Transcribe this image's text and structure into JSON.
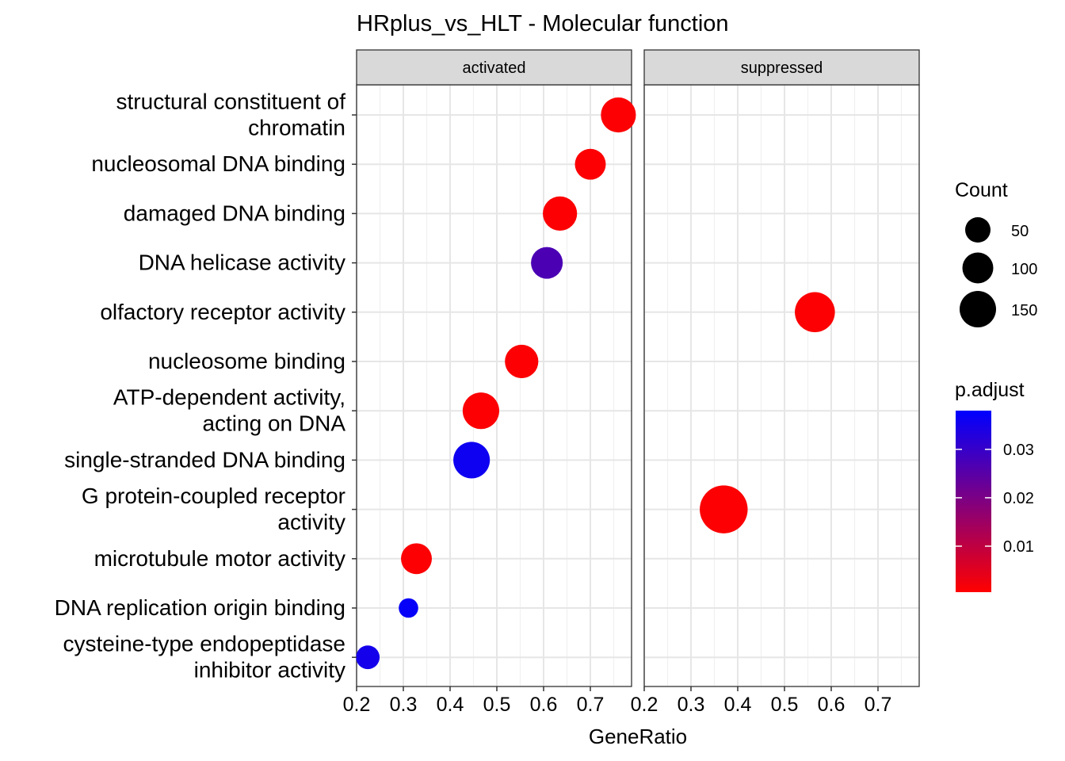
{
  "chart_data": {
    "type": "scatter",
    "title": "HRplus_vs_HLT - Molecular function",
    "xlabel": "GeneRatio",
    "ylabel": "",
    "xlim": [
      0.2,
      0.79
    ],
    "x_ticks": [
      "0.2",
      "0.3",
      "0.4",
      "0.5",
      "0.6",
      "0.7"
    ],
    "facets": [
      "activated",
      "suppressed"
    ],
    "categories": [
      "structural constituent of chromatin",
      "nucleosomal DNA binding",
      "damaged DNA binding",
      "DNA helicase activity",
      "olfactory receptor activity",
      "nucleosome binding",
      "ATP-dependent activity, acting on DNA",
      "single-stranded DNA binding",
      "G protein-coupled receptor activity",
      "microtubule motor activity",
      "DNA replication origin binding",
      "cysteine-type endopeptidase inhibitor activity"
    ],
    "category_labels": [
      [
        "structural constituent of",
        "chromatin"
      ],
      [
        "nucleosomal DNA binding"
      ],
      [
        "damaged DNA binding"
      ],
      [
        "DNA helicase activity"
      ],
      [
        "olfactory receptor activity"
      ],
      [
        "nucleosome binding"
      ],
      [
        "ATP-dependent activity,",
        "acting on DNA"
      ],
      [
        "single-stranded DNA binding"
      ],
      [
        "G protein-coupled receptor",
        "activity"
      ],
      [
        "microtubule motor activity"
      ],
      [
        "DNA replication origin binding"
      ],
      [
        "cysteine-type endopeptidase",
        "inhibitor activity"
      ]
    ],
    "points": [
      {
        "facet": "activated",
        "category": "structural constituent of chromatin",
        "x": 0.76,
        "count": 100,
        "p_adjust": 0.001
      },
      {
        "facet": "activated",
        "category": "nucleosomal DNA binding",
        "x": 0.7,
        "count": 75,
        "p_adjust": 0.001
      },
      {
        "facet": "activated",
        "category": "damaged DNA binding",
        "x": 0.635,
        "count": 95,
        "p_adjust": 0.001
      },
      {
        "facet": "activated",
        "category": "DNA helicase activity",
        "x": 0.607,
        "count": 80,
        "p_adjust": 0.027
      },
      {
        "facet": "activated",
        "category": "nucleosome binding",
        "x": 0.553,
        "count": 90,
        "p_adjust": 0.001
      },
      {
        "facet": "activated",
        "category": "ATP-dependent activity, acting on DNA",
        "x": 0.466,
        "count": 110,
        "p_adjust": 0.001
      },
      {
        "facet": "activated",
        "category": "single-stranded DNA binding",
        "x": 0.446,
        "count": 110,
        "p_adjust": 0.036
      },
      {
        "facet": "activated",
        "category": "microtubule motor activity",
        "x": 0.328,
        "count": 75,
        "p_adjust": 0.001
      },
      {
        "facet": "activated",
        "category": "DNA replication origin binding",
        "x": 0.311,
        "count": 25,
        "p_adjust": 0.037
      },
      {
        "facet": "activated",
        "category": "cysteine-type endopeptidase inhibitor activity",
        "x": 0.224,
        "count": 40,
        "p_adjust": 0.035
      },
      {
        "facet": "suppressed",
        "category": "olfactory receptor activity",
        "x": 0.565,
        "count": 135,
        "p_adjust": 0.001
      },
      {
        "facet": "suppressed",
        "category": "G protein-coupled receptor activity",
        "x": 0.37,
        "count": 200,
        "p_adjust": 0.001
      }
    ],
    "legend_size": {
      "title": "Count",
      "values": [
        50,
        100,
        150
      ],
      "labels": [
        "50",
        "100",
        "150"
      ]
    },
    "legend_color": {
      "title": "p.adjust",
      "range": [
        0.0005,
        0.038
      ],
      "ticks": [
        0.01,
        0.02,
        0.03
      ],
      "tick_labels": [
        "0.01",
        "0.02",
        "0.03"
      ],
      "low_color": "#FF0000",
      "high_color": "#0000FF"
    },
    "grid": true,
    "legend_position": "right"
  }
}
